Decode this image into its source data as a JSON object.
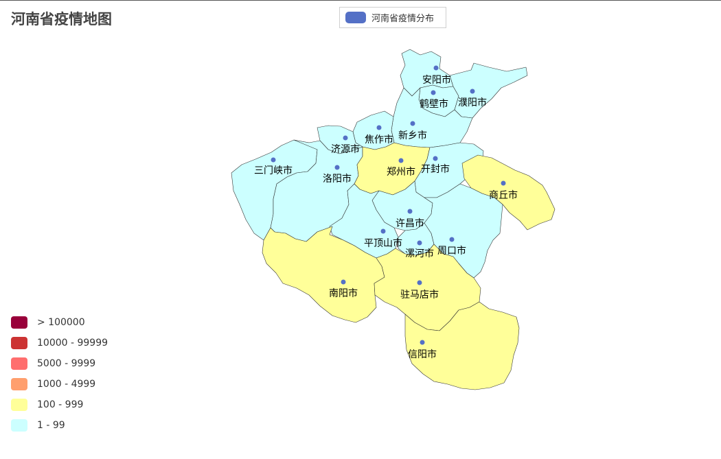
{
  "title": "河南省疫情地图",
  "legend": {
    "series_name": "河南省疫情分布",
    "marker_color": "#5470c6"
  },
  "visual_map": [
    {
      "label": "> 100000",
      "color": "#99003a"
    },
    {
      "label": "10000 - 99999",
      "color": "#cc3333"
    },
    {
      "label": "5000 - 9999",
      "color": "#ff6e6e"
    },
    {
      "label": "1000 - 4999",
      "color": "#ff9f6e"
    },
    {
      "label": "100 - 999",
      "color": "#ffff99"
    },
    {
      "label": "1 - 99",
      "color": "#ccffff"
    }
  ],
  "map": {
    "border_color": "#333333",
    "point_color": "#5470c6",
    "cities": [
      {
        "name": "安阳市",
        "range": "1 - 99"
      },
      {
        "name": "鹤壁市",
        "range": "1 - 99"
      },
      {
        "name": "濮阳市",
        "range": "1 - 99"
      },
      {
        "name": "新乡市",
        "range": "1 - 99"
      },
      {
        "name": "焦作市",
        "range": "1 - 99"
      },
      {
        "name": "济源市",
        "range": "1 - 99"
      },
      {
        "name": "三门峡市",
        "range": "1 - 99"
      },
      {
        "name": "洛阳市",
        "range": "1 - 99"
      },
      {
        "name": "郑州市",
        "range": "100 - 999"
      },
      {
        "name": "开封市",
        "range": "1 - 99"
      },
      {
        "name": "商丘市",
        "range": "100 - 999"
      },
      {
        "name": "许昌市",
        "range": "1 - 99"
      },
      {
        "name": "平顶山市",
        "range": "1 - 99"
      },
      {
        "name": "漯河市",
        "range": "1 - 99"
      },
      {
        "name": "周口市",
        "range": "1 - 99"
      },
      {
        "name": "南阳市",
        "range": "100 - 999"
      },
      {
        "name": "驻马店市",
        "range": "100 - 999"
      },
      {
        "name": "信阳市",
        "range": "100 - 999"
      }
    ]
  }
}
